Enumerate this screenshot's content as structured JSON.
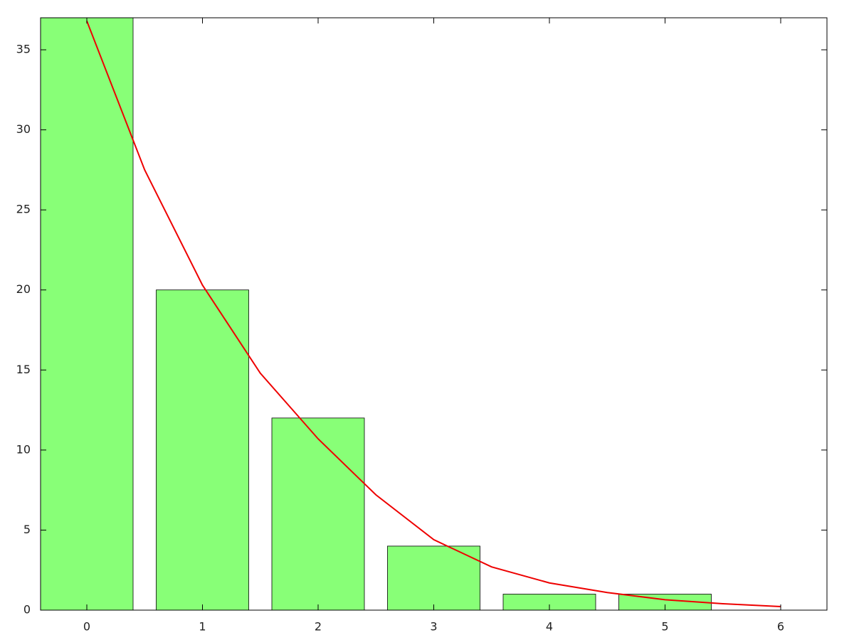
{
  "chart_data": [
    {
      "type": "bar",
      "x": [
        0,
        1,
        2,
        3,
        4,
        5
      ],
      "values": [
        37,
        20,
        12,
        4,
        1,
        1
      ],
      "color": "#88ff77",
      "bar_width": 0.8,
      "xlim": [
        -0.4,
        6.4
      ],
      "ylim": [
        0,
        37
      ],
      "xticks": [
        0,
        1,
        2,
        3,
        4,
        5,
        6
      ],
      "yticks": [
        0,
        5,
        10,
        15,
        20,
        25,
        30,
        35
      ]
    },
    {
      "type": "line",
      "color": "#ee0000",
      "x": [
        0,
        0.5,
        1,
        1.5,
        2,
        2.5,
        3,
        3.5,
        4,
        4.5,
        5,
        5.5,
        6
      ],
      "values": [
        36.8,
        27.5,
        20.3,
        14.8,
        10.7,
        7.2,
        4.4,
        2.7,
        1.7,
        1.1,
        0.65,
        0.4,
        0.22
      ]
    }
  ]
}
